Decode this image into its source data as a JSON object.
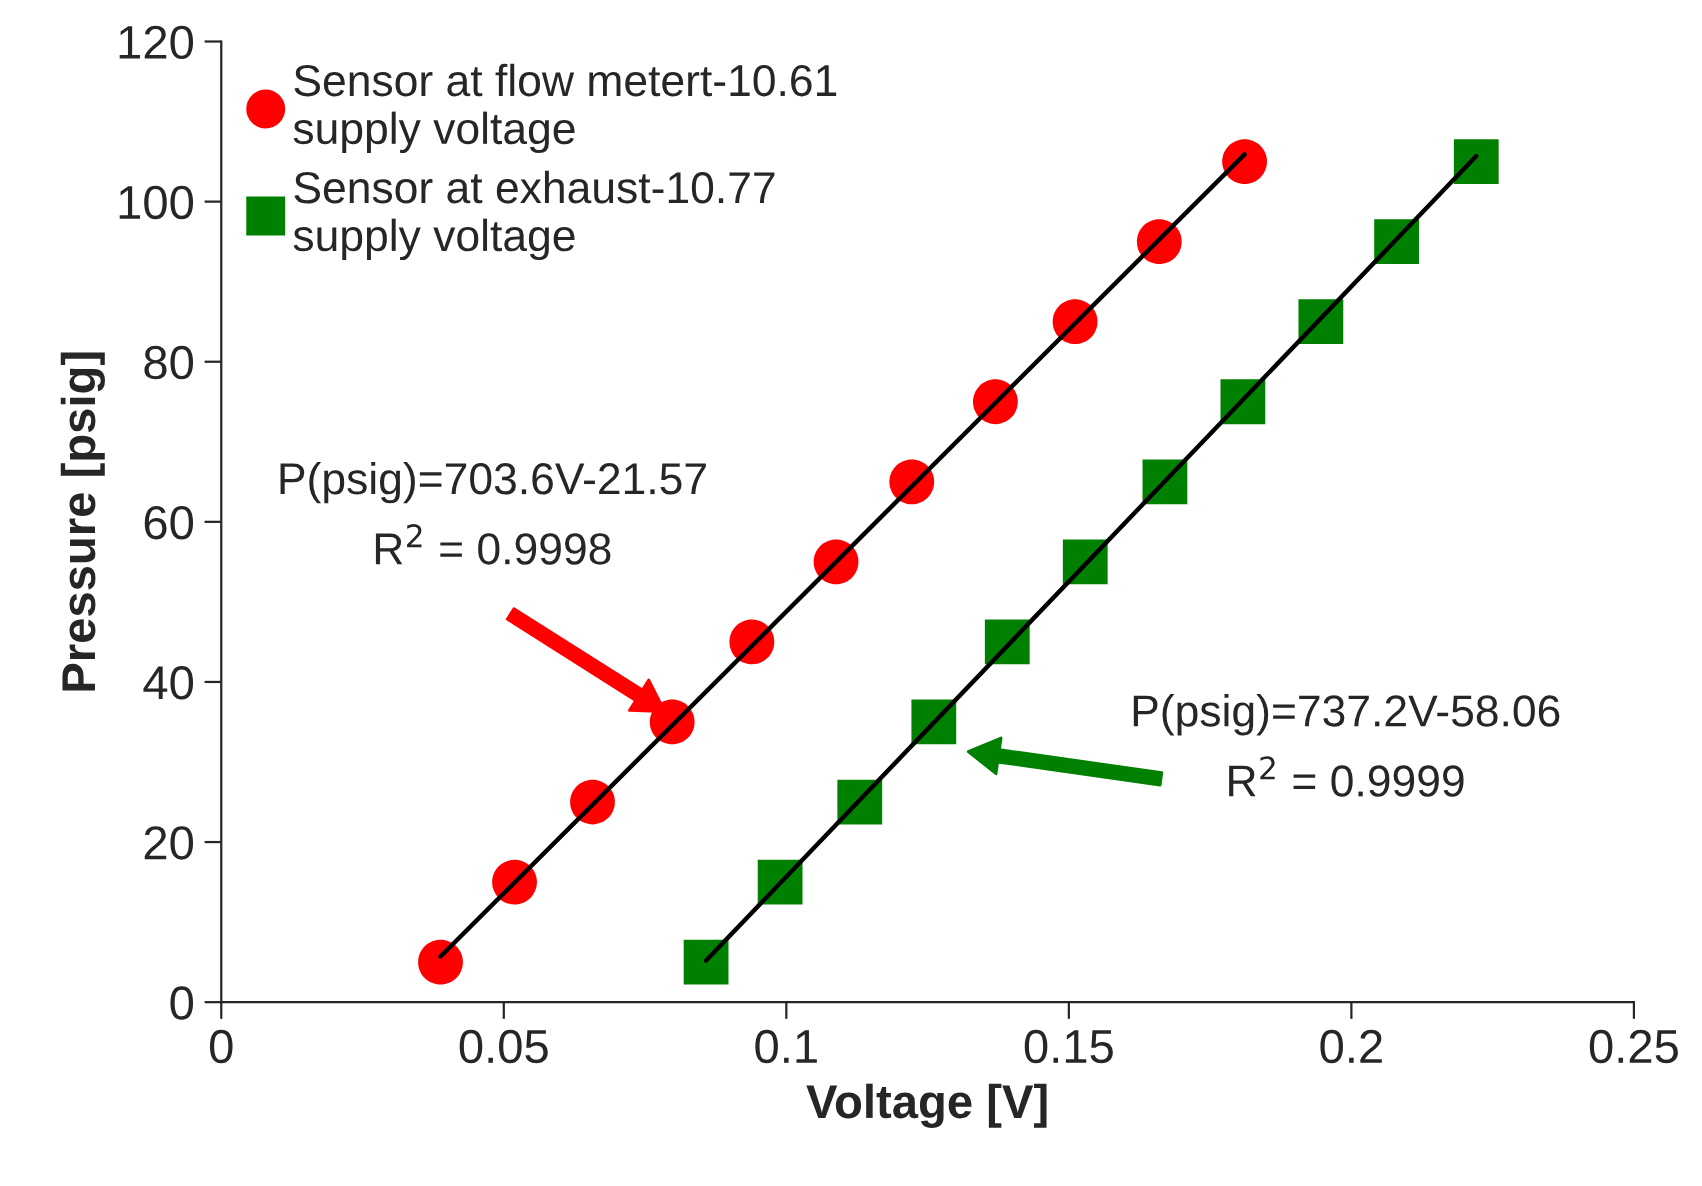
{
  "chart_data": {
    "type": "scatter",
    "xlabel": "Voltage [V]",
    "ylabel": "Pressure [psig]",
    "xlim": [
      0,
      0.25
    ],
    "xticks": [
      0,
      0.05,
      0.1,
      0.15,
      0.2,
      0.25
    ],
    "ylim": [
      0,
      120
    ],
    "yticks": [
      0,
      20,
      40,
      60,
      80,
      100,
      120
    ],
    "grid": false,
    "legend": "top left",
    "series": [
      {
        "name": "Sensor at flow metert-10.61\nsupply voltage",
        "color": "#ff0000",
        "marker": "circle",
        "x": [
          0.0388,
          0.0519,
          0.0657,
          0.0798,
          0.0939,
          0.1088,
          0.1222,
          0.137,
          0.1511,
          0.166,
          0.1811
        ],
        "values": [
          5,
          15,
          25,
          35,
          45,
          55,
          65,
          75,
          85,
          95,
          105
        ]
      },
      {
        "name": "Sensor at exhaust-10.77\nsupply voltage",
        "color": "#008000",
        "marker": "square",
        "x": [
          0.0858,
          0.0989,
          0.113,
          0.1261,
          0.1391,
          0.1529,
          0.167,
          0.1808,
          0.1946,
          0.208,
          0.2221
        ],
        "values": [
          5,
          15,
          25,
          35,
          45,
          55,
          65,
          75,
          85,
          95,
          105
        ]
      },
      {
        "type": "line",
        "color": "#000000",
        "marker": "none",
        "x": [
          0.0388,
          0.1811
        ],
        "values": [
          5.7,
          105.9
        ]
      },
      {
        "type": "line",
        "color": "#000000",
        "marker": "none",
        "x": [
          0.0858,
          0.2221
        ],
        "values": [
          5.2,
          105.7
        ]
      }
    ],
    "annotations": [
      "P(psig)=703.6V-21.57\nR$^{2}$ = 0.9998",
      "P(psig)=737.2V-58.06\nR$^{2}$ = 0.9999"
    ]
  }
}
